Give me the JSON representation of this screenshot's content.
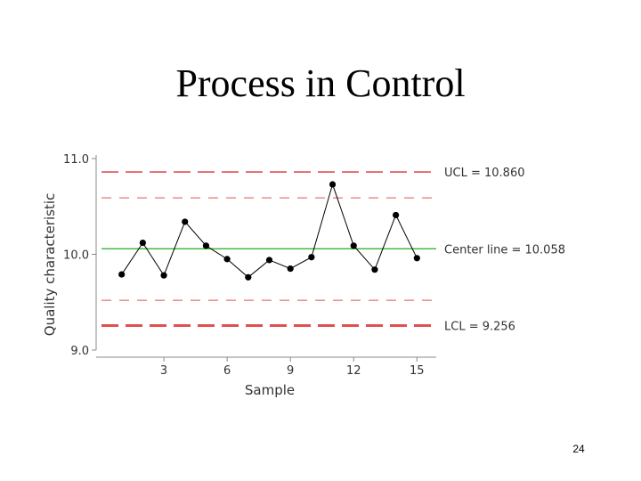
{
  "slide": {
    "title": "Process in Control",
    "page_number": "24"
  },
  "chart_data": {
    "type": "line",
    "xlabel": "Sample",
    "ylabel": "Quality characteristic",
    "xlim": [
      0,
      16
    ],
    "ylim": [
      9.0,
      11.0
    ],
    "x_ticks": [
      3,
      6,
      9,
      12,
      15
    ],
    "y_ticks": [
      {
        "value": 9.0,
        "label": "9.0"
      },
      {
        "value": 10.0,
        "label": "10.0"
      },
      {
        "value": 11.0,
        "label": "11.0"
      }
    ],
    "series": [
      {
        "x": [
          1,
          2,
          3,
          4,
          5,
          6,
          7,
          8,
          9,
          10,
          11,
          12,
          13,
          14,
          15
        ],
        "values": [
          9.79,
          10.12,
          9.78,
          10.34,
          10.09,
          9.95,
          9.76,
          9.94,
          9.85,
          9.97,
          10.73,
          10.09,
          9.84,
          10.41,
          9.96
        ],
        "color": "#000000"
      }
    ],
    "control_lines": [
      {
        "kind": "ucl",
        "value": 10.86,
        "label": "UCL = 10.860",
        "style": "dashed",
        "color": "#e05050"
      },
      {
        "kind": "upper-warning",
        "value": 10.59,
        "style": "dashed-thin",
        "color": "#e05050"
      },
      {
        "kind": "center",
        "value": 10.058,
        "label": "Center line = 10.058",
        "style": "solid",
        "color": "#22aa22"
      },
      {
        "kind": "lower-warning",
        "value": 9.52,
        "style": "dashed-thin",
        "color": "#e05050"
      },
      {
        "kind": "lcl",
        "value": 9.256,
        "label": "LCL = 9.256",
        "style": "dashed-thick",
        "color": "#e05050"
      }
    ],
    "grid": false,
    "legend": "none"
  }
}
